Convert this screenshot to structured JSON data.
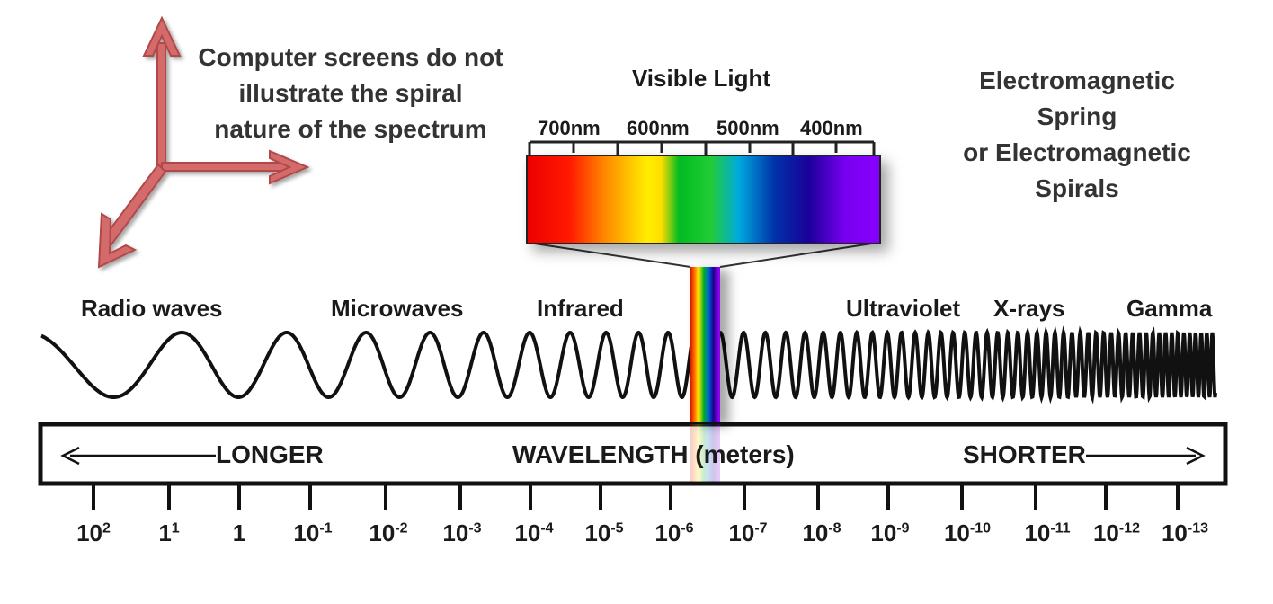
{
  "notes": {
    "screens_line1": "Computer screens do not",
    "screens_line2": "illustrate the spiral",
    "screens_line3": "nature of the spectrum",
    "em_line1": "Electromagnetic",
    "em_line2": "Spring",
    "em_line3": "or Electromagnetic",
    "em_line4": "Spirals"
  },
  "visible_light": {
    "title": "Visible Light",
    "ticks": [
      "700nm",
      "600nm",
      "500nm",
      "400nm"
    ]
  },
  "bands": [
    "Radio waves",
    "Microwaves",
    "Infrared",
    "Ultraviolet",
    "X-rays",
    "Gamma"
  ],
  "bar": {
    "longer": "LONGER",
    "center": "WAVELENGTH (meters)",
    "shorter": "SHORTER"
  },
  "scale": [
    {
      "base": "10",
      "exp": "2"
    },
    {
      "base": "1",
      "exp": "1"
    },
    {
      "base": "1",
      "exp": ""
    },
    {
      "base": "10",
      "exp": "-1"
    },
    {
      "base": "10",
      "exp": "-2"
    },
    {
      "base": "10",
      "exp": "-3"
    },
    {
      "base": "10",
      "exp": "-4"
    },
    {
      "base": "10",
      "exp": "-5"
    },
    {
      "base": "10",
      "exp": "-6"
    },
    {
      "base": "10",
      "exp": "-7"
    },
    {
      "base": "10",
      "exp": "-8"
    },
    {
      "base": "10",
      "exp": "-9"
    },
    {
      "base": "10",
      "exp": "-10"
    },
    {
      "base": "10",
      "exp": "-11"
    },
    {
      "base": "10",
      "exp": "-12"
    },
    {
      "base": "10",
      "exp": "-13"
    }
  ],
  "colors": {
    "axes_arrow": "#c85a5a",
    "wave": "#111111",
    "note_text": "#333333"
  }
}
